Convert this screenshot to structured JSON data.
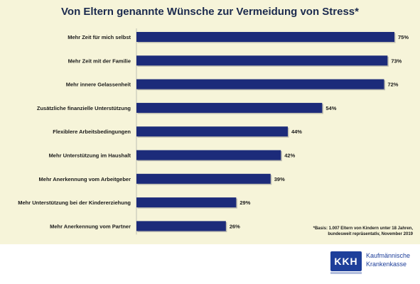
{
  "title": "Von Eltern genannte Wünsche zur Vermeidung von Stress*",
  "chart_data": {
    "type": "bar",
    "orientation": "horizontal",
    "categories": [
      "Mehr Zeit für mich selbst",
      "Mehr Zeit mit der Familie",
      "Mehr innere Gelassenheit",
      "Zusätzliche finanzielle Unterstützung",
      "Flexiblere Arbeitsbedingungen",
      "Mehr Unterstützung im Haushalt",
      "Mehr Anerkennung vom Arbeitgeber",
      "Mehr Unterstützung bei der Kindererziehung",
      "Mehr Anerkennung vom Partner"
    ],
    "values": [
      75,
      73,
      72,
      54,
      44,
      42,
      39,
      29,
      26
    ],
    "value_labels": [
      "75%",
      "73%",
      "72%",
      "54%",
      "44%",
      "42%",
      "39%",
      "29%",
      "26%"
    ],
    "unit": "%",
    "xlim": [
      0,
      75
    ],
    "bar_color": "#1c2b7a",
    "grid": false,
    "legend": "none"
  },
  "footnote": {
    "line1": "*Basis: 1.007 Eltern von Kindern unter 18 Jahren,",
    "line2": "bundesweit repräsentativ, November 2019"
  },
  "logo": {
    "mark": "KKH",
    "line1": "Kaufmännische",
    "line2": "Krankenkasse",
    "color": "#1e3f9a"
  }
}
